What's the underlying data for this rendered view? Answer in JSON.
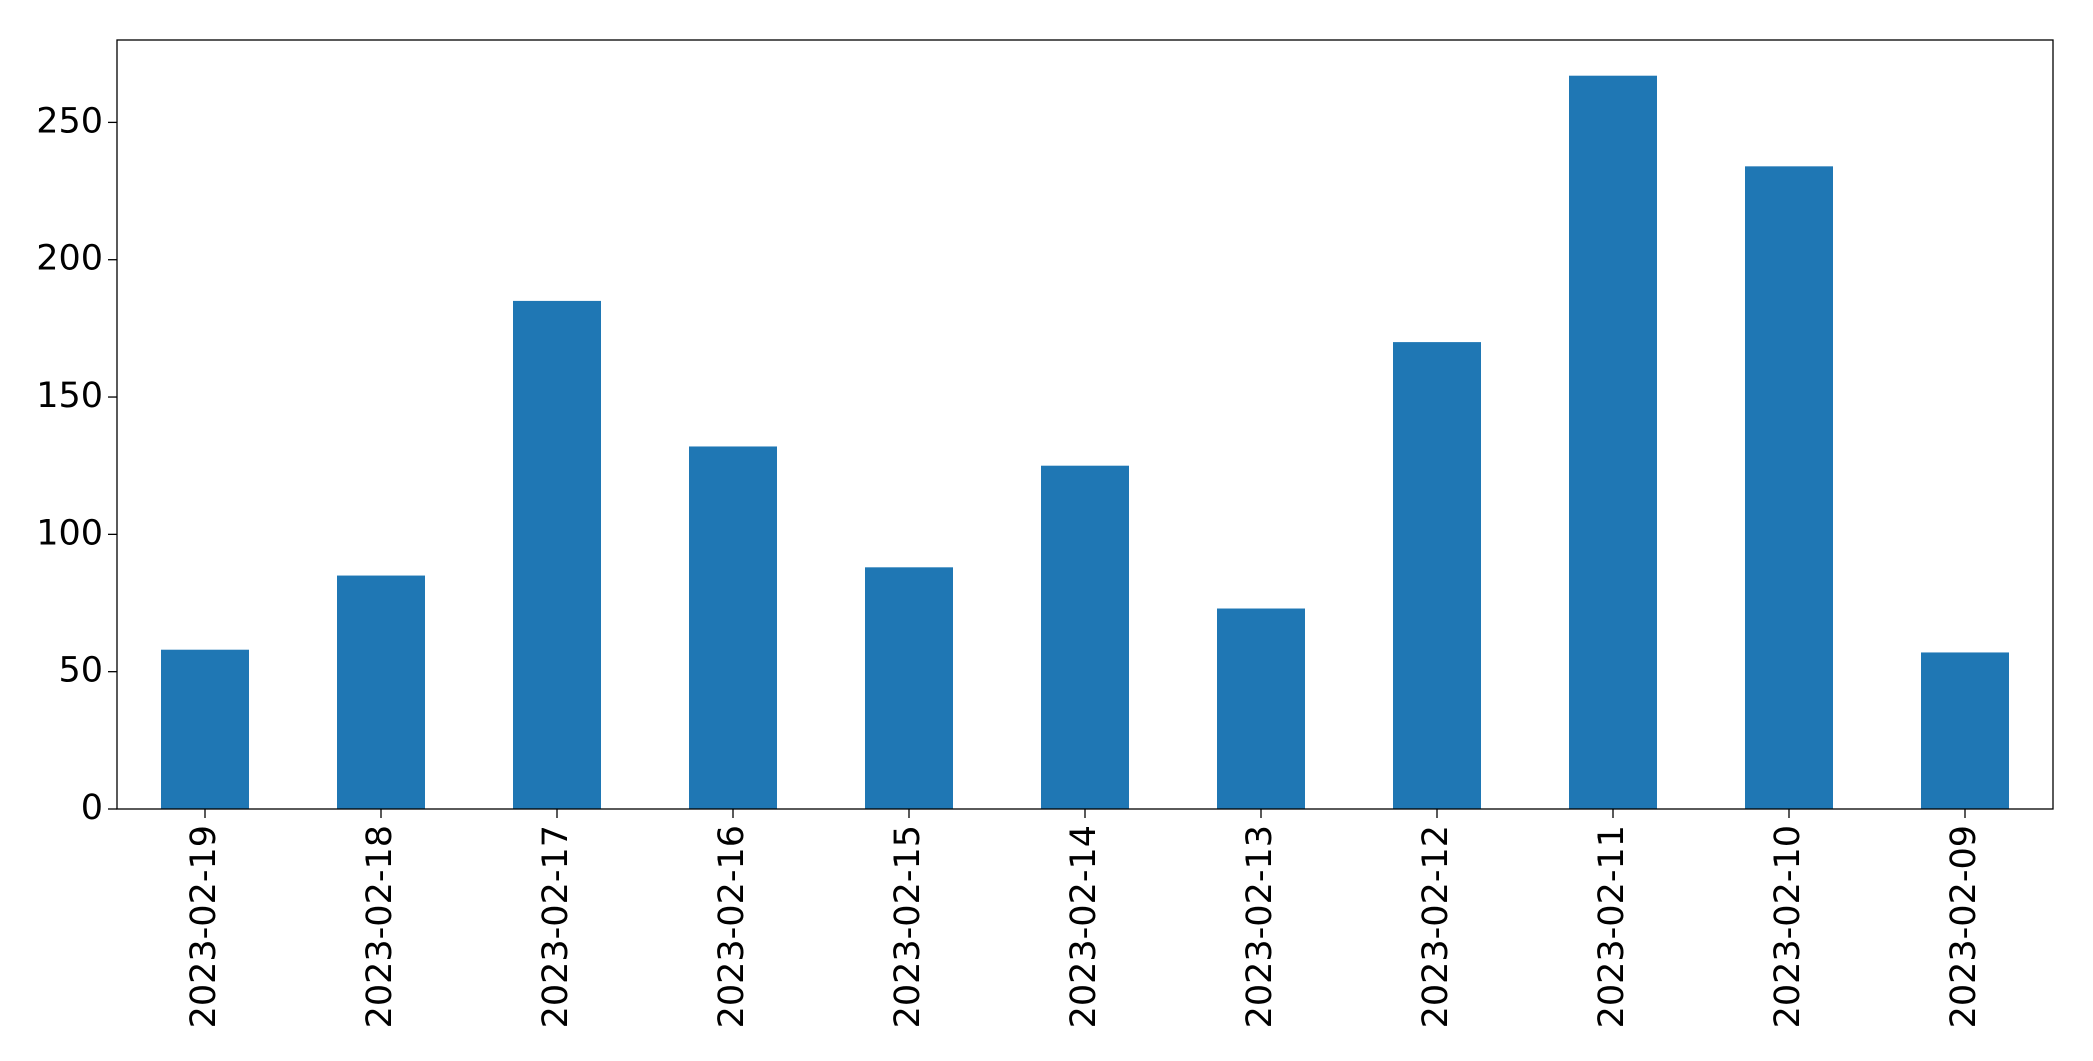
{
  "chart_data": {
    "type": "bar",
    "categories": [
      "2023-02-19",
      "2023-02-18",
      "2023-02-17",
      "2023-02-16",
      "2023-02-15",
      "2023-02-14",
      "2023-02-13",
      "2023-02-12",
      "2023-02-11",
      "2023-02-10",
      "2023-02-09"
    ],
    "values": [
      58,
      85,
      185,
      132,
      88,
      125,
      73,
      170,
      267,
      234,
      57
    ],
    "color": "#1f77b4",
    "ylim": [
      0,
      280
    ],
    "yticks": [
      0,
      50,
      100,
      150,
      200,
      250
    ],
    "grid": false
  }
}
